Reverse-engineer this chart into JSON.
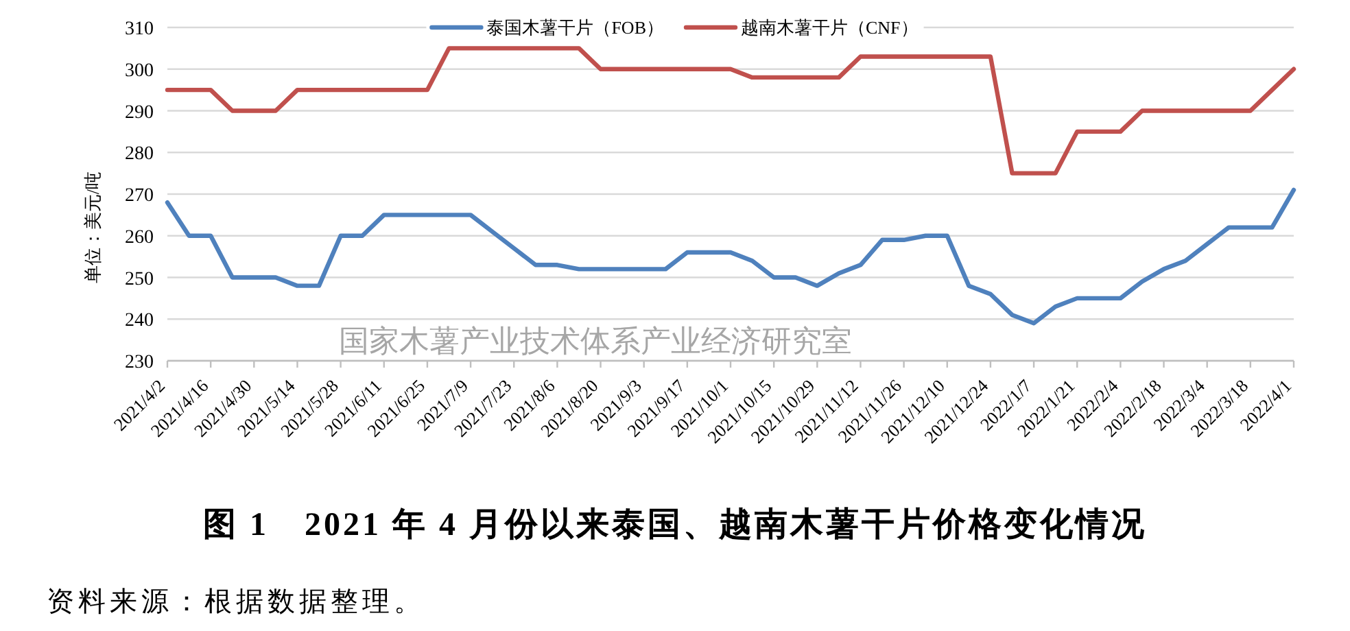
{
  "chart_data": {
    "type": "line",
    "title": "图 1　2021 年 4 月份以来泰国、越南木薯干片价格变化情况",
    "ylabel": "单位：美元/吨",
    "categories": [
      "2021/4/2",
      null,
      "2021/4/16",
      null,
      "2021/4/30",
      null,
      "2021/5/14",
      null,
      "2021/5/28",
      null,
      "2021/6/11",
      null,
      "2021/6/25",
      null,
      "2021/7/9",
      null,
      "2021/7/23",
      null,
      "2021/8/6",
      null,
      "2021/8/20",
      null,
      "2021/9/3",
      null,
      "2021/9/17",
      null,
      "2021/10/1",
      null,
      "2021/10/15",
      null,
      "2021/10/29",
      null,
      "2021/11/12",
      null,
      "2021/11/26",
      null,
      "2021/12/10",
      null,
      "2021/12/24",
      null,
      "2022/1/7",
      null,
      "2022/1/21",
      null,
      "2022/2/4",
      null,
      "2022/2/18",
      null,
      "2022/3/4",
      null,
      "2022/3/18",
      null,
      "2022/4/1"
    ],
    "series": [
      {
        "name": "泰国木薯干片（FOB）",
        "color": "#4f81bd",
        "values": [
          268,
          260,
          260,
          250,
          250,
          250,
          248,
          248,
          260,
          260,
          265,
          265,
          265,
          265,
          265,
          261,
          257,
          253,
          253,
          252,
          252,
          252,
          252,
          252,
          256,
          256,
          256,
          254,
          250,
          250,
          248,
          251,
          253,
          259,
          259,
          260,
          260,
          248,
          246,
          241,
          239,
          243,
          245,
          245,
          245,
          249,
          252,
          254,
          258,
          262,
          262,
          262,
          271
        ]
      },
      {
        "name": "越南木薯干片（CNF）",
        "color": "#c0504d",
        "values": [
          295,
          295,
          295,
          290,
          290,
          290,
          295,
          295,
          295,
          295,
          295,
          295,
          295,
          305,
          305,
          305,
          305,
          305,
          305,
          305,
          300,
          300,
          300,
          300,
          300,
          300,
          300,
          298,
          298,
          298,
          298,
          298,
          303,
          303,
          303,
          303,
          303,
          303,
          303,
          275,
          275,
          275,
          285,
          285,
          285,
          290,
          290,
          290,
          290,
          290,
          290,
          295,
          300
        ]
      }
    ],
    "ylim": [
      230,
      310
    ],
    "yticks": [
      230,
      240,
      250,
      260,
      270,
      280,
      290,
      300,
      310
    ],
    "grid": "y",
    "legend": "top",
    "line_style": "solid",
    "annotations": [
      "国家木薯产业技术体系产业经济研究室",
      "资料来源：根据数据整理。"
    ]
  }
}
